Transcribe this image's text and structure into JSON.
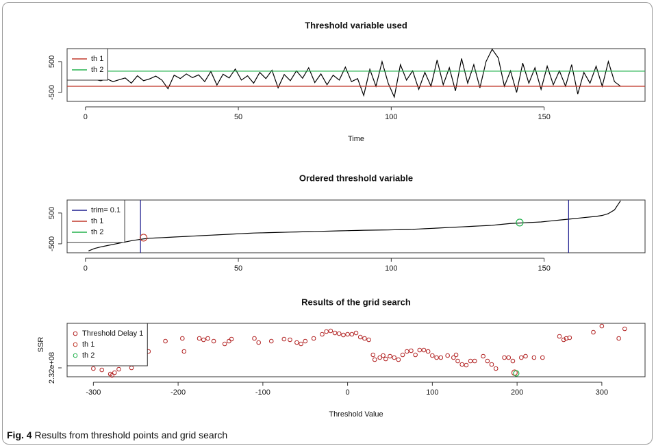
{
  "chart_data": [
    {
      "type": "line",
      "title": "Threshold variable used",
      "x_label": "Time",
      "x": [
        1,
        3,
        5,
        7,
        9,
        11,
        13,
        15,
        17,
        19,
        21,
        23,
        25,
        27,
        29,
        31,
        33,
        35,
        37,
        39,
        41,
        43,
        45,
        47,
        49,
        51,
        53,
        55,
        57,
        59,
        61,
        63,
        65,
        67,
        69,
        71,
        73,
        75,
        77,
        79,
        81,
        83,
        85,
        87,
        89,
        91,
        93,
        95,
        97,
        99,
        101,
        103,
        105,
        107,
        109,
        111,
        113,
        115,
        117,
        119,
        121,
        123,
        125,
        127,
        129,
        131,
        133,
        135,
        137,
        139,
        141,
        143,
        145,
        147,
        149,
        151,
        153,
        155,
        157,
        159,
        161,
        163,
        165,
        167,
        169,
        171,
        173,
        175
      ],
      "series": [
        {
          "color": "#000000",
          "values": [
            -100,
            -80,
            -120,
            -60,
            -150,
            -90,
            -30,
            -200,
            40,
            -120,
            -60,
            30,
            -100,
            -380,
            60,
            -50,
            100,
            -20,
            70,
            -150,
            180,
            -260,
            90,
            -30,
            260,
            -100,
            40,
            -200,
            150,
            -50,
            220,
            -350,
            80,
            -120,
            200,
            -40,
            300,
            -180,
            100,
            -250,
            60,
            -100,
            320,
            -150,
            -50,
            -600,
            250,
            -300,
            500,
            -200,
            -650,
            400,
            -100,
            200,
            -400,
            150,
            -300,
            550,
            -250,
            300,
            -450,
            600,
            -200,
            400,
            -350,
            500,
            900,
            620,
            -300,
            200,
            -500,
            450,
            -200,
            300,
            -400,
            350,
            -250,
            200,
            -300,
            400,
            -550,
            150,
            -200,
            350,
            -300,
            500,
            -150,
            -300
          ]
        }
      ],
      "thresholds": [
        {
          "name": "th 1",
          "value": -300,
          "color": "#c0392b"
        },
        {
          "name": "th 2",
          "value": 190,
          "color": "#22b14c"
        }
      ],
      "threshold_style": "hline",
      "xlim": [
        -6,
        183
      ],
      "xticks": [
        0,
        50,
        100,
        150
      ],
      "ylim": [
        -790,
        920
      ],
      "yticks": [
        -500,
        500
      ],
      "legend": "top-left"
    },
    {
      "type": "line",
      "title": "Ordered threshold variable",
      "x": [
        1,
        3,
        5,
        7,
        9,
        11,
        13,
        15,
        17,
        19,
        21,
        23,
        25,
        27,
        29,
        31,
        33,
        35,
        37,
        39,
        41,
        43,
        45,
        47,
        49,
        51,
        53,
        55,
        57,
        59,
        61,
        63,
        65,
        67,
        69,
        71,
        73,
        75,
        77,
        79,
        81,
        83,
        85,
        87,
        89,
        91,
        93,
        95,
        97,
        99,
        101,
        103,
        105,
        107,
        109,
        111,
        113,
        115,
        117,
        119,
        121,
        123,
        125,
        127,
        129,
        131,
        133,
        135,
        137,
        139,
        141,
        143,
        145,
        147,
        149,
        151,
        153,
        155,
        157,
        159,
        161,
        163,
        165,
        167,
        169,
        171,
        173,
        175
      ],
      "series": [
        {
          "color": "#000000",
          "values": [
            -730,
            -650,
            -600,
            -560,
            -520,
            -480,
            -440,
            -400,
            -370,
            -340,
            -320,
            -310,
            -300,
            -290,
            -280,
            -270,
            -260,
            -250,
            -240,
            -230,
            -220,
            -210,
            -200,
            -190,
            -180,
            -170,
            -160,
            -150,
            -145,
            -140,
            -135,
            -130,
            -125,
            -120,
            -115,
            -110,
            -105,
            -100,
            -95,
            -90,
            -85,
            -80,
            -75,
            -70,
            -65,
            -60,
            -57,
            -55,
            -52,
            -50,
            -45,
            -40,
            -35,
            -30,
            -20,
            -10,
            0,
            10,
            20,
            30,
            40,
            50,
            60,
            70,
            80,
            90,
            100,
            120,
            140,
            160,
            170,
            180,
            190,
            200,
            210,
            230,
            250,
            270,
            290,
            310,
            330,
            350,
            370,
            390,
            420,
            480,
            600,
            900
          ]
        }
      ],
      "trim": {
        "name": "trim= 0.1",
        "x": [
          18,
          158
        ],
        "color": "#1f1f8f"
      },
      "thresholds": [
        {
          "name": "th 1",
          "x": 19,
          "value": -300,
          "color": "#c0392b"
        },
        {
          "name": "th 2",
          "x": 142,
          "value": 190,
          "color": "#22b14c"
        }
      ],
      "threshold_style": "marker",
      "xlim": [
        -6,
        183
      ],
      "xticks": [
        0,
        50,
        100,
        150
      ],
      "ylim": [
        -790,
        920
      ],
      "yticks": [
        -500,
        500
      ],
      "legend": "top-left"
    },
    {
      "type": "scatter",
      "title": "Results of the grid search",
      "x_label": "Threshold Value",
      "y_label": "SSR",
      "series": [
        {
          "name": "Threshold Delay 1",
          "color": "#b22222",
          "x": [
            -300,
            -290,
            -280,
            -278,
            -275,
            -270,
            -255,
            -235,
            -215,
            -195,
            -193,
            -175,
            -170,
            -165,
            -158,
            -145,
            -140,
            -137,
            -110,
            -105,
            -90,
            -75,
            -68,
            -60,
            -55,
            -50,
            -40,
            -30,
            -25,
            -20,
            -15,
            -10,
            -5,
            0,
            5,
            10,
            15,
            20,
            25,
            30,
            32,
            38,
            42,
            45,
            50,
            55,
            60,
            65,
            70,
            75,
            80,
            85,
            90,
            95,
            100,
            105,
            110,
            118,
            125,
            128,
            130,
            135,
            140,
            145,
            150,
            160,
            165,
            170,
            175,
            185,
            190,
            195,
            205,
            210,
            220,
            230,
            250,
            255,
            258,
            262,
            290,
            300,
            320,
            327
          ],
          "values": [
            231950000,
            231850000,
            231550000,
            231450000,
            231650000,
            231900000,
            232000000,
            233200000,
            233950000,
            234150000,
            233200000,
            234150000,
            234050000,
            234150000,
            233950000,
            233750000,
            233950000,
            234100000,
            234150000,
            233850000,
            233950000,
            234100000,
            234050000,
            233850000,
            233750000,
            233950000,
            234150000,
            234450000,
            234650000,
            234700000,
            234550000,
            234500000,
            234400000,
            234450000,
            234450000,
            234550000,
            234250000,
            234150000,
            234050000,
            232950000,
            232600000,
            232750000,
            232900000,
            232650000,
            232850000,
            232750000,
            232600000,
            232950000,
            233200000,
            233250000,
            232950000,
            233300000,
            233300000,
            233200000,
            232900000,
            232750000,
            232750000,
            232900000,
            232750000,
            232950000,
            232500000,
            232250000,
            232200000,
            232500000,
            232500000,
            232850000,
            232500000,
            232250000,
            231950000,
            232750000,
            232750000,
            232500000,
            232750000,
            232850000,
            232750000,
            232750000,
            234300000,
            234050000,
            234150000,
            234200000,
            234600000,
            235050000,
            234150000,
            234850000
          ]
        }
      ],
      "thresholds": [
        {
          "name": "th 1",
          "x": 197,
          "value": 231650000,
          "color": "#c0392b"
        },
        {
          "name": "th 2",
          "x": 199,
          "value": 231600000,
          "color": "#22b14c"
        }
      ],
      "threshold_style": "marker",
      "xlim": [
        -331,
        351
      ],
      "xticks": [
        -300,
        -200,
        -100,
        0,
        100,
        200,
        300
      ],
      "ylim": [
        231350000,
        235250000
      ],
      "yticks": [
        {
          "value": 232000000,
          "label": "2.32e+08"
        }
      ],
      "legend": "top-left"
    }
  ],
  "caption": {
    "label": "Fig. 4",
    "text": "Results from threshold points and grid search"
  }
}
